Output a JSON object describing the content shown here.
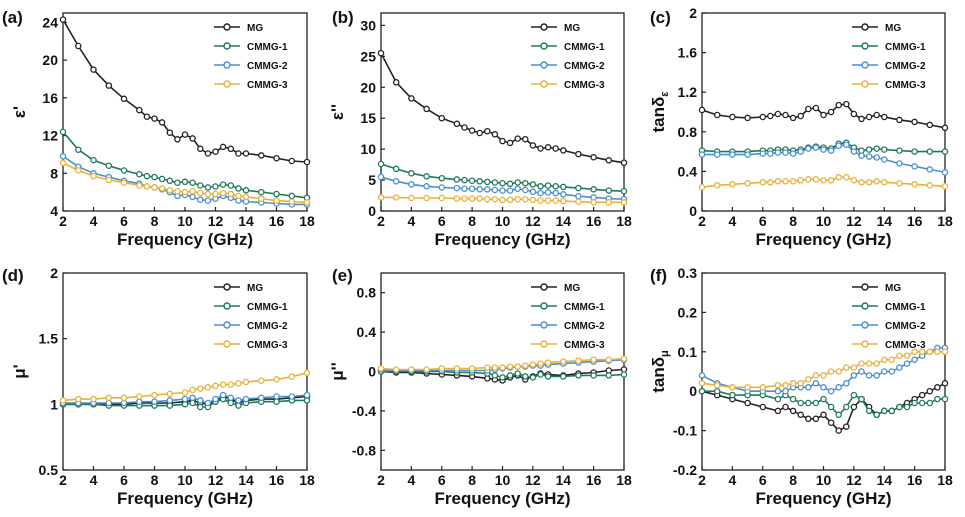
{
  "chart_data": [
    {
      "type": "line",
      "panel_label": "(a)",
      "title": "",
      "xlabel": "Frequency (GHz)",
      "ylabel": "ε'",
      "ylabel_main": "ε",
      "ylabel_suffix": "'",
      "xlim": [
        2,
        18
      ],
      "ylim": [
        4,
        25
      ],
      "xticks": [
        2,
        4,
        6,
        8,
        10,
        12,
        14,
        16,
        18
      ],
      "yticks": [
        4,
        8,
        12,
        16,
        20,
        24
      ],
      "legend_position": "top-right",
      "x": [
        2,
        3,
        4,
        5,
        6,
        7,
        7.5,
        8,
        8.5,
        9,
        9.5,
        10,
        10.5,
        11,
        11.5,
        12,
        12.5,
        13,
        13.5,
        14,
        15,
        16,
        17,
        18
      ],
      "series": [
        {
          "name": "MG",
          "color": "#222222",
          "values": [
            24.3,
            21.5,
            19.0,
            17.3,
            15.9,
            14.7,
            14.0,
            13.8,
            13.4,
            12.3,
            11.6,
            12.1,
            11.7,
            10.6,
            10.1,
            10.3,
            10.8,
            10.6,
            10.1,
            10.1,
            9.9,
            9.6,
            9.3,
            9.2
          ]
        },
        {
          "name": "CMMG-1",
          "color": "#1f7a5a",
          "values": [
            12.4,
            10.5,
            9.4,
            8.8,
            8.3,
            7.9,
            7.7,
            7.6,
            7.4,
            7.2,
            7.0,
            7.1,
            7.0,
            6.7,
            6.5,
            6.6,
            6.8,
            6.7,
            6.4,
            6.2,
            6.0,
            5.8,
            5.6,
            5.4
          ]
        },
        {
          "name": "CMMG-2",
          "color": "#4a8fd1",
          "values": [
            9.8,
            8.7,
            8.0,
            7.6,
            7.2,
            6.9,
            6.6,
            6.5,
            6.3,
            6.0,
            5.6,
            5.7,
            5.5,
            5.2,
            5.1,
            5.3,
            5.6,
            5.4,
            5.1,
            5.0,
            4.9,
            4.8,
            4.7,
            4.7
          ]
        },
        {
          "name": "CMMG-3",
          "color": "#e8b23a",
          "values": [
            9.1,
            8.3,
            7.7,
            7.3,
            7.0,
            6.7,
            6.6,
            6.5,
            6.4,
            6.2,
            6.1,
            6.0,
            6.1,
            5.9,
            5.8,
            5.8,
            5.9,
            5.8,
            5.6,
            5.5,
            5.3,
            5.1,
            5.0,
            4.9
          ]
        }
      ]
    },
    {
      "type": "line",
      "panel_label": "(b)",
      "title": "",
      "xlabel": "Frequency (GHz)",
      "ylabel": "ε''",
      "ylabel_main": "ε",
      "ylabel_suffix": "''",
      "xlim": [
        2,
        18
      ],
      "ylim": [
        0,
        32
      ],
      "xticks": [
        2,
        4,
        6,
        8,
        10,
        12,
        14,
        16,
        18
      ],
      "yticks": [
        0,
        5,
        10,
        15,
        20,
        25,
        30
      ],
      "legend_position": "top-right",
      "x": [
        2,
        3,
        4,
        5,
        6,
        7,
        7.5,
        8,
        8.5,
        9,
        9.5,
        10,
        10.5,
        11,
        11.5,
        12,
        12.5,
        13,
        13.5,
        14,
        15,
        16,
        17,
        18
      ],
      "series": [
        {
          "name": "MG",
          "color": "#222222",
          "values": [
            25.5,
            20.8,
            18.2,
            16.5,
            15.0,
            14.1,
            13.5,
            13.0,
            12.6,
            12.9,
            12.4,
            11.3,
            11.0,
            11.7,
            11.6,
            10.6,
            10.1,
            10.3,
            10.1,
            9.8,
            9.2,
            8.7,
            8.2,
            7.8
          ]
        },
        {
          "name": "CMMG-1",
          "color": "#1f7a5a",
          "values": [
            7.6,
            6.8,
            6.1,
            5.6,
            5.3,
            5.1,
            5.0,
            4.9,
            4.8,
            4.7,
            4.6,
            4.5,
            4.4,
            4.6,
            4.5,
            4.3,
            4.0,
            4.1,
            4.0,
            3.9,
            3.7,
            3.5,
            3.3,
            3.2
          ]
        },
        {
          "name": "CMMG-2",
          "color": "#4a8fd1",
          "values": [
            5.5,
            4.8,
            4.3,
            4.0,
            3.8,
            3.7,
            3.6,
            3.6,
            3.5,
            3.5,
            3.4,
            3.3,
            3.3,
            3.6,
            3.4,
            3.1,
            2.9,
            3.0,
            2.9,
            2.7,
            2.4,
            2.2,
            2.0,
            1.9
          ]
        },
        {
          "name": "CMMG-3",
          "color": "#e8b23a",
          "values": [
            2.2,
            2.2,
            2.1,
            2.1,
            2.1,
            2.0,
            2.0,
            2.0,
            2.0,
            1.9,
            1.9,
            1.8,
            1.8,
            1.9,
            1.9,
            1.8,
            1.7,
            1.7,
            1.7,
            1.6,
            1.5,
            1.4,
            1.4,
            1.4
          ]
        }
      ]
    },
    {
      "type": "line",
      "panel_label": "(c)",
      "title": "",
      "xlabel": "Frequency (GHz)",
      "ylabel": "tanδε",
      "ylabel_main": "tanδ",
      "ylabel_sub": "ε",
      "xlim": [
        2,
        18
      ],
      "ylim": [
        0,
        2
      ],
      "xticks": [
        2,
        4,
        6,
        8,
        10,
        12,
        14,
        16,
        18
      ],
      "yticks": [
        0,
        0.4,
        0.8,
        1.2,
        1.6,
        2
      ],
      "legend_position": "top-right",
      "x": [
        2,
        3,
        4,
        5,
        6,
        6.5,
        7,
        7.5,
        8,
        8.5,
        9,
        9.5,
        10,
        10.5,
        11,
        11.5,
        12,
        12.5,
        13,
        13.5,
        14,
        15,
        16,
        17,
        18
      ],
      "series": [
        {
          "name": "MG",
          "color": "#222222",
          "values": [
            1.02,
            0.97,
            0.95,
            0.94,
            0.95,
            0.96,
            0.98,
            0.97,
            0.94,
            0.96,
            1.03,
            1.04,
            0.97,
            1.0,
            1.07,
            1.08,
            0.98,
            0.93,
            0.95,
            0.97,
            0.95,
            0.92,
            0.9,
            0.87,
            0.84
          ]
        },
        {
          "name": "CMMG-1",
          "color": "#1f7a5a",
          "values": [
            0.61,
            0.6,
            0.6,
            0.6,
            0.61,
            0.61,
            0.62,
            0.62,
            0.61,
            0.62,
            0.64,
            0.65,
            0.64,
            0.63,
            0.68,
            0.69,
            0.64,
            0.61,
            0.62,
            0.63,
            0.62,
            0.61,
            0.6,
            0.6,
            0.6
          ]
        },
        {
          "name": "CMMG-2",
          "color": "#4a8fd1",
          "values": [
            0.57,
            0.57,
            0.57,
            0.57,
            0.58,
            0.58,
            0.59,
            0.59,
            0.58,
            0.6,
            0.63,
            0.64,
            0.62,
            0.61,
            0.66,
            0.67,
            0.6,
            0.56,
            0.55,
            0.54,
            0.52,
            0.48,
            0.45,
            0.42,
            0.39
          ]
        },
        {
          "name": "CMMG-3",
          "color": "#e8b23a",
          "values": [
            0.24,
            0.26,
            0.27,
            0.28,
            0.29,
            0.29,
            0.3,
            0.3,
            0.3,
            0.31,
            0.32,
            0.32,
            0.31,
            0.31,
            0.34,
            0.34,
            0.31,
            0.29,
            0.29,
            0.3,
            0.29,
            0.28,
            0.27,
            0.26,
            0.25
          ]
        }
      ]
    },
    {
      "type": "line",
      "panel_label": "(d)",
      "title": "",
      "xlabel": "Frequency (GHz)",
      "ylabel": "μ'",
      "ylabel_main": "μ",
      "ylabel_suffix": "'",
      "xlim": [
        2,
        18
      ],
      "ylim": [
        0.5,
        2
      ],
      "xticks": [
        2,
        4,
        6,
        8,
        10,
        12,
        14,
        16,
        18
      ],
      "yticks": [
        0.5,
        1,
        1.5,
        2
      ],
      "legend_position": "top-right",
      "x": [
        2,
        3,
        4,
        5,
        6,
        7,
        8,
        9,
        10,
        10.5,
        11,
        11.5,
        12,
        12.5,
        13,
        13.5,
        14,
        15,
        16,
        17,
        18
      ],
      "series": [
        {
          "name": "MG",
          "color": "#222222",
          "values": [
            1.0,
            1.0,
            1.0,
            1.0,
            1.0,
            1.01,
            1.01,
            1.01,
            1.02,
            1.03,
            1.01,
            1.0,
            1.02,
            1.06,
            1.04,
            1.01,
            1.03,
            1.04,
            1.04,
            1.05,
            1.06
          ]
        },
        {
          "name": "CMMG-1",
          "color": "#1f7a5a",
          "values": [
            1.0,
            1.0,
            1.0,
            0.99,
            0.99,
            0.99,
            0.99,
            0.99,
            1.0,
            1.01,
            0.98,
            0.98,
            1.02,
            1.04,
            1.01,
            0.99,
            1.01,
            1.02,
            1.02,
            1.03,
            1.03
          ]
        },
        {
          "name": "CMMG-2",
          "color": "#4a8fd1",
          "values": [
            1.01,
            1.01,
            1.01,
            1.01,
            1.01,
            1.02,
            1.02,
            1.03,
            1.04,
            1.05,
            1.03,
            1.01,
            1.04,
            1.07,
            1.05,
            1.03,
            1.04,
            1.05,
            1.06,
            1.06,
            1.07
          ]
        },
        {
          "name": "CMMG-3",
          "color": "#e8b23a",
          "values": [
            1.03,
            1.04,
            1.04,
            1.05,
            1.05,
            1.06,
            1.07,
            1.08,
            1.09,
            1.11,
            1.12,
            1.13,
            1.14,
            1.15,
            1.15,
            1.16,
            1.17,
            1.18,
            1.19,
            1.21,
            1.24
          ]
        }
      ]
    },
    {
      "type": "line",
      "panel_label": "(e)",
      "title": "",
      "xlabel": "Frequency (GHz)",
      "ylabel": "μ''",
      "ylabel_main": "μ",
      "ylabel_suffix": "''",
      "xlim": [
        2,
        18
      ],
      "ylim": [
        -1,
        1
      ],
      "xticks": [
        2,
        4,
        6,
        8,
        10,
        12,
        14,
        16,
        18
      ],
      "yticks": [
        -0.8,
        -0.4,
        0,
        0.4,
        0.8
      ],
      "legend_position": "top-right",
      "x": [
        2,
        3,
        4,
        5,
        6,
        7,
        8,
        9,
        9.5,
        10,
        10.5,
        11,
        11.5,
        12,
        12.5,
        13,
        14,
        15,
        16,
        17,
        18
      ],
      "series": [
        {
          "name": "MG",
          "color": "#222222",
          "values": [
            0.0,
            -0.01,
            -0.01,
            -0.02,
            -0.03,
            -0.04,
            -0.05,
            -0.07,
            -0.08,
            -0.09,
            -0.06,
            -0.04,
            -0.08,
            -0.05,
            -0.02,
            -0.03,
            -0.04,
            -0.02,
            -0.01,
            0.01,
            0.02
          ]
        },
        {
          "name": "CMMG-1",
          "color": "#1f7a5a",
          "values": [
            0.0,
            0.0,
            0.0,
            0.0,
            0.0,
            -0.01,
            -0.01,
            -0.02,
            -0.04,
            -0.06,
            -0.04,
            -0.02,
            -0.05,
            -0.06,
            -0.03,
            -0.05,
            -0.05,
            -0.04,
            -0.04,
            -0.04,
            -0.03
          ]
        },
        {
          "name": "CMMG-2",
          "color": "#4a8fd1",
          "values": [
            0.02,
            0.01,
            0.01,
            0.01,
            0.01,
            0.01,
            0.01,
            0.01,
            0.02,
            0.03,
            0.04,
            0.05,
            0.05,
            0.06,
            0.06,
            0.07,
            0.08,
            0.09,
            0.1,
            0.11,
            0.12
          ]
        },
        {
          "name": "CMMG-3",
          "color": "#e8b23a",
          "values": [
            0.03,
            0.02,
            0.02,
            0.02,
            0.03,
            0.03,
            0.03,
            0.04,
            0.04,
            0.04,
            0.05,
            0.05,
            0.06,
            0.07,
            0.08,
            0.09,
            0.1,
            0.11,
            0.12,
            0.12,
            0.13
          ]
        }
      ]
    },
    {
      "type": "line",
      "panel_label": "(f)",
      "title": "",
      "xlabel": "Frequency (GHz)",
      "ylabel": "tanδμ",
      "ylabel_main": "tanδ",
      "ylabel_sub": "μ",
      "xlim": [
        2,
        18
      ],
      "ylim": [
        -0.2,
        0.3
      ],
      "xticks": [
        2,
        4,
        6,
        8,
        10,
        12,
        14,
        16,
        18
      ],
      "yticks": [
        -0.2,
        -0.1,
        0,
        0.1,
        0.2,
        0.3
      ],
      "legend_position": "top-right",
      "x": [
        2,
        3,
        4,
        5,
        6,
        7,
        7.5,
        8,
        8.5,
        9,
        9.5,
        10,
        10.5,
        11,
        11.5,
        12,
        12.5,
        13,
        13.5,
        14,
        14.5,
        15,
        15.5,
        16,
        16.5,
        17,
        17.5,
        18
      ],
      "series": [
        {
          "name": "MG",
          "color": "#222222",
          "values": [
            0.0,
            -0.01,
            -0.02,
            -0.03,
            -0.04,
            -0.05,
            -0.04,
            -0.05,
            -0.06,
            -0.07,
            -0.07,
            -0.06,
            -0.08,
            -0.1,
            -0.09,
            -0.04,
            -0.02,
            -0.04,
            -0.06,
            -0.05,
            -0.05,
            -0.04,
            -0.03,
            -0.02,
            -0.01,
            0.0,
            0.01,
            0.02
          ]
        },
        {
          "name": "CMMG-1",
          "color": "#1f7a5a",
          "values": [
            0.0,
            0.0,
            -0.01,
            -0.01,
            -0.01,
            -0.02,
            -0.01,
            -0.02,
            -0.03,
            -0.03,
            -0.03,
            -0.02,
            -0.04,
            -0.06,
            -0.04,
            -0.01,
            -0.02,
            -0.05,
            -0.06,
            -0.05,
            -0.05,
            -0.04,
            -0.04,
            -0.03,
            -0.03,
            -0.03,
            -0.02,
            -0.02
          ]
        },
        {
          "name": "CMMG-2",
          "color": "#4a8fd1",
          "values": [
            0.04,
            0.02,
            0.01,
            0.0,
            0.0,
            0.0,
            0.0,
            0.01,
            0.01,
            0.01,
            0.02,
            0.01,
            0.0,
            0.01,
            0.02,
            0.04,
            0.05,
            0.04,
            0.04,
            0.05,
            0.05,
            0.06,
            0.07,
            0.08,
            0.09,
            0.1,
            0.11,
            0.11
          ]
        },
        {
          "name": "CMMG-3",
          "color": "#e8b23a",
          "values": [
            0.02,
            0.015,
            0.01,
            0.01,
            0.01,
            0.015,
            0.015,
            0.02,
            0.02,
            0.03,
            0.04,
            0.04,
            0.05,
            0.05,
            0.06,
            0.06,
            0.07,
            0.07,
            0.07,
            0.08,
            0.08,
            0.09,
            0.09,
            0.1,
            0.1,
            0.1,
            0.1,
            0.1
          ]
        }
      ]
    }
  ]
}
